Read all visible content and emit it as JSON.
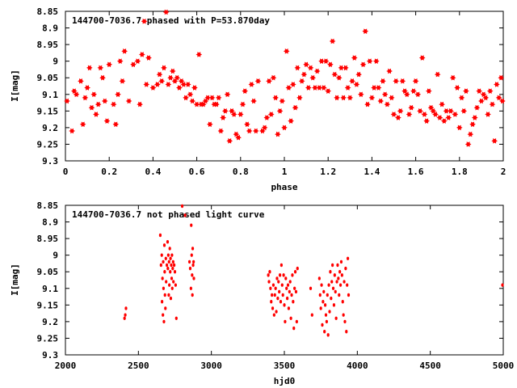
{
  "chart_data": [
    {
      "type": "scatter",
      "title": "144700-7036.7 phased with P=53.870day",
      "xlabel": "phase",
      "ylabel": "I[mag]",
      "xlim": [
        0,
        2
      ],
      "ylim": [
        9.3,
        8.85
      ],
      "y_inverted": true,
      "x_ticks": [
        0,
        0.2,
        0.4,
        0.6,
        0.8,
        1,
        1.2,
        1.4,
        1.6,
        1.8,
        2
      ],
      "x_tick_labels": [
        "0",
        "0.2",
        "0.4",
        "0.6",
        "0.8",
        "1",
        "1.2",
        "1.4",
        "1.6",
        "1.8",
        "2"
      ],
      "y_ticks": [
        8.85,
        8.9,
        8.95,
        9,
        9.05,
        9.1,
        9.15,
        9.2,
        9.25,
        9.3
      ],
      "y_tick_labels": [
        "8.85",
        "8.9",
        "8.95",
        "9",
        "9.05",
        "9.1",
        "9.15",
        "9.2",
        "9.25",
        "9.3"
      ],
      "grid": false,
      "marker_color": "#ff0000",
      "points": [
        [
          0.0,
          9.12
        ],
        [
          0.03,
          9.21
        ],
        [
          0.04,
          9.09
        ],
        [
          0.05,
          9.1
        ],
        [
          0.07,
          9.06
        ],
        [
          0.08,
          9.19
        ],
        [
          0.09,
          9.11
        ],
        [
          0.1,
          9.08
        ],
        [
          0.11,
          9.02
        ],
        [
          0.12,
          9.14
        ],
        [
          0.13,
          9.1
        ],
        [
          0.14,
          9.16
        ],
        [
          0.15,
          9.13
        ],
        [
          0.16,
          9.02
        ],
        [
          0.17,
          9.05
        ],
        [
          0.18,
          9.12
        ],
        [
          0.19,
          9.18
        ],
        [
          0.2,
          9.01
        ],
        [
          0.22,
          9.13
        ],
        [
          0.23,
          9.19
        ],
        [
          0.24,
          9.1
        ],
        [
          0.25,
          9.0
        ],
        [
          0.26,
          9.06
        ],
        [
          0.27,
          8.97
        ],
        [
          0.29,
          9.12
        ],
        [
          0.31,
          9.01
        ],
        [
          0.33,
          9.0
        ],
        [
          0.34,
          9.13
        ],
        [
          0.35,
          8.98
        ],
        [
          0.36,
          8.88
        ],
        [
          0.37,
          9.07
        ],
        [
          0.38,
          8.99
        ],
        [
          0.4,
          9.08
        ],
        [
          0.42,
          9.07
        ],
        [
          0.43,
          9.04
        ],
        [
          0.44,
          9.06
        ],
        [
          0.45,
          9.02
        ],
        [
          0.46,
          8.85
        ],
        [
          0.47,
          9.07
        ],
        [
          0.48,
          9.05
        ],
        [
          0.49,
          9.03
        ],
        [
          0.5,
          9.06
        ],
        [
          0.51,
          9.05
        ],
        [
          0.52,
          9.08
        ],
        [
          0.53,
          9.06
        ],
        [
          0.54,
          9.07
        ],
        [
          0.55,
          9.11
        ],
        [
          0.56,
          9.07
        ],
        [
          0.57,
          9.1
        ],
        [
          0.58,
          9.12
        ],
        [
          0.59,
          9.08
        ],
        [
          0.6,
          9.13
        ],
        [
          0.61,
          8.98
        ],
        [
          0.62,
          9.13
        ],
        [
          0.63,
          9.13
        ],
        [
          0.64,
          9.12
        ],
        [
          0.65,
          9.11
        ],
        [
          0.66,
          9.19
        ],
        [
          0.67,
          9.11
        ],
        [
          0.68,
          9.13
        ],
        [
          0.69,
          9.13
        ],
        [
          0.7,
          9.11
        ],
        [
          0.71,
          9.21
        ],
        [
          0.72,
          9.17
        ],
        [
          0.73,
          9.15
        ],
        [
          0.74,
          9.1
        ],
        [
          0.75,
          9.24
        ],
        [
          0.76,
          9.15
        ],
        [
          0.77,
          9.16
        ],
        [
          0.78,
          9.22
        ],
        [
          0.79,
          9.23
        ],
        [
          0.8,
          9.16
        ],
        [
          0.81,
          9.13
        ],
        [
          0.82,
          9.09
        ],
        [
          0.83,
          9.19
        ],
        [
          0.84,
          9.21
        ],
        [
          0.85,
          9.07
        ],
        [
          0.86,
          9.12
        ],
        [
          0.87,
          9.21
        ],
        [
          0.88,
          9.06
        ],
        [
          0.9,
          9.21
        ],
        [
          0.91,
          9.2
        ],
        [
          0.92,
          9.17
        ],
        [
          0.93,
          9.06
        ],
        [
          0.94,
          9.16
        ],
        [
          0.95,
          9.05
        ],
        [
          0.96,
          9.11
        ],
        [
          0.97,
          9.22
        ],
        [
          0.98,
          9.15
        ],
        [
          0.99,
          9.12
        ],
        [
          1.0,
          9.2
        ],
        [
          1.01,
          8.97
        ],
        [
          1.02,
          9.08
        ],
        [
          1.03,
          9.18
        ],
        [
          1.04,
          9.07
        ],
        [
          1.05,
          9.14
        ],
        [
          1.06,
          9.02
        ],
        [
          1.07,
          9.11
        ],
        [
          1.08,
          9.06
        ],
        [
          1.09,
          9.04
        ],
        [
          1.1,
          9.01
        ],
        [
          1.11,
          9.08
        ],
        [
          1.12,
          9.02
        ],
        [
          1.13,
          9.05
        ],
        [
          1.14,
          9.08
        ],
        [
          1.15,
          9.03
        ],
        [
          1.16,
          9.08
        ],
        [
          1.17,
          9.0
        ],
        [
          1.18,
          9.08
        ],
        [
          1.19,
          9.0
        ],
        [
          1.2,
          9.09
        ],
        [
          1.21,
          9.01
        ],
        [
          1.22,
          8.94
        ],
        [
          1.23,
          9.04
        ],
        [
          1.24,
          9.11
        ],
        [
          1.25,
          9.05
        ],
        [
          1.26,
          9.02
        ],
        [
          1.27,
          9.11
        ],
        [
          1.28,
          9.02
        ],
        [
          1.29,
          9.08
        ],
        [
          1.3,
          9.11
        ],
        [
          1.31,
          9.06
        ],
        [
          1.32,
          8.99
        ],
        [
          1.33,
          9.07
        ],
        [
          1.34,
          9.04
        ],
        [
          1.35,
          9.1
        ],
        [
          1.36,
          9.01
        ],
        [
          1.37,
          8.91
        ],
        [
          1.38,
          9.13
        ],
        [
          1.39,
          9.0
        ],
        [
          1.4,
          9.11
        ],
        [
          1.41,
          9.08
        ],
        [
          1.42,
          9.0
        ],
        [
          1.43,
          9.08
        ],
        [
          1.44,
          9.12
        ],
        [
          1.45,
          9.06
        ],
        [
          1.46,
          9.1
        ],
        [
          1.47,
          9.13
        ],
        [
          1.48,
          9.03
        ],
        [
          1.49,
          9.11
        ],
        [
          1.5,
          9.16
        ],
        [
          1.51,
          9.06
        ],
        [
          1.52,
          9.17
        ],
        [
          1.53,
          9.15
        ],
        [
          1.54,
          9.06
        ],
        [
          1.55,
          9.09
        ],
        [
          1.56,
          9.1
        ],
        [
          1.57,
          9.16
        ],
        [
          1.58,
          9.14
        ],
        [
          1.59,
          9.09
        ],
        [
          1.6,
          9.06
        ],
        [
          1.61,
          9.1
        ],
        [
          1.62,
          9.15
        ],
        [
          1.63,
          8.99
        ],
        [
          1.64,
          9.16
        ],
        [
          1.65,
          9.18
        ],
        [
          1.66,
          9.09
        ],
        [
          1.67,
          9.14
        ],
        [
          1.68,
          9.15
        ],
        [
          1.69,
          9.16
        ],
        [
          1.7,
          9.04
        ],
        [
          1.71,
          9.17
        ],
        [
          1.72,
          9.13
        ],
        [
          1.73,
          9.18
        ],
        [
          1.74,
          9.15
        ],
        [
          1.75,
          9.17
        ],
        [
          1.76,
          9.15
        ],
        [
          1.77,
          9.05
        ],
        [
          1.78,
          9.16
        ],
        [
          1.79,
          9.08
        ],
        [
          1.8,
          9.2
        ],
        [
          1.81,
          9.11
        ],
        [
          1.82,
          9.15
        ],
        [
          1.83,
          9.09
        ],
        [
          1.84,
          9.25
        ],
        [
          1.85,
          9.22
        ],
        [
          1.86,
          9.19
        ],
        [
          1.87,
          9.17
        ],
        [
          1.88,
          9.14
        ],
        [
          1.89,
          9.09
        ],
        [
          1.9,
          9.12
        ],
        [
          1.91,
          9.1
        ],
        [
          1.92,
          9.11
        ],
        [
          1.93,
          9.16
        ],
        [
          1.94,
          9.09
        ],
        [
          1.95,
          9.13
        ],
        [
          1.96,
          9.24
        ],
        [
          1.97,
          9.07
        ],
        [
          1.98,
          9.11
        ],
        [
          1.99,
          9.05
        ],
        [
          2.0,
          9.12
        ]
      ]
    },
    {
      "type": "scatter",
      "title": "144700-7036.7 not phased light curve",
      "xlabel": "hjd0",
      "ylabel": "I[mag]",
      "xlim": [
        2000,
        5000
      ],
      "ylim": [
        9.3,
        8.85
      ],
      "y_inverted": true,
      "x_ticks": [
        2000,
        2500,
        3000,
        3500,
        4000,
        4500,
        5000
      ],
      "x_tick_labels": [
        "2000",
        "2500",
        "3000",
        "3500",
        "4000",
        "4500",
        "5000"
      ],
      "y_ticks": [
        8.85,
        8.9,
        8.95,
        9,
        9.05,
        9.1,
        9.15,
        9.2,
        9.25,
        9.3
      ],
      "y_tick_labels": [
        "8.85",
        "8.9",
        "8.95",
        "9",
        "9.05",
        "9.1",
        "9.15",
        "9.2",
        "9.25",
        "9.3"
      ],
      "grid": false,
      "marker_color": "#ff0000",
      "points": [
        [
          2405,
          9.19
        ],
        [
          2410,
          9.18
        ],
        [
          2415,
          9.16
        ],
        [
          2650,
          8.94
        ],
        [
          2655,
          9.03
        ],
        [
          2660,
          9.0
        ],
        [
          2662,
          9.14
        ],
        [
          2665,
          9.07
        ],
        [
          2668,
          9.18
        ],
        [
          2670,
          9.02
        ],
        [
          2672,
          9.1
        ],
        [
          2675,
          9.2
        ],
        [
          2678,
          8.97
        ],
        [
          2680,
          9.05
        ],
        [
          2682,
          9.12
        ],
        [
          2685,
          9.16
        ],
        [
          2688,
          9.01
        ],
        [
          2690,
          9.08
        ],
        [
          2695,
          9.03
        ],
        [
          2700,
          8.96
        ],
        [
          2702,
          9.04
        ],
        [
          2705,
          9.0
        ],
        [
          2708,
          9.12
        ],
        [
          2710,
          9.02
        ],
        [
          2712,
          9.09
        ],
        [
          2715,
          8.98
        ],
        [
          2718,
          9.05
        ],
        [
          2720,
          9.01
        ],
        [
          2722,
          9.13
        ],
        [
          2725,
          9.03
        ],
        [
          2728,
          9.07
        ],
        [
          2730,
          9.0
        ],
        [
          2732,
          9.1
        ],
        [
          2735,
          9.04
        ],
        [
          2738,
          9.02
        ],
        [
          2740,
          9.08
        ],
        [
          2745,
          9.03
        ],
        [
          2750,
          9.05
        ],
        [
          2755,
          9.09
        ],
        [
          2760,
          9.19
        ],
        [
          2800,
          8.85
        ],
        [
          2820,
          8.88
        ],
        [
          2850,
          9.02
        ],
        [
          2855,
          9.04
        ],
        [
          2860,
          9.1
        ],
        [
          2862,
          8.91
        ],
        [
          2865,
          9.0
        ],
        [
          2868,
          9.06
        ],
        [
          2870,
          9.12
        ],
        [
          2872,
          8.98
        ],
        [
          2875,
          9.03
        ],
        [
          2878,
          9.02
        ],
        [
          2880,
          9.07
        ],
        [
          3390,
          9.06
        ],
        [
          3395,
          9.08
        ],
        [
          3400,
          9.05
        ],
        [
          3405,
          9.1
        ],
        [
          3410,
          9.14
        ],
        [
          3415,
          9.12
        ],
        [
          3420,
          9.16
        ],
        [
          3425,
          9.09
        ],
        [
          3430,
          9.18
        ],
        [
          3435,
          9.12
        ],
        [
          3440,
          9.1
        ],
        [
          3445,
          9.17
        ],
        [
          3450,
          9.07
        ],
        [
          3455,
          9.13
        ],
        [
          3460,
          9.08
        ],
        [
          3465,
          9.11
        ],
        [
          3470,
          9.06
        ],
        [
          3475,
          9.14
        ],
        [
          3480,
          9.03
        ],
        [
          3485,
          9.09
        ],
        [
          3490,
          9.12
        ],
        [
          3495,
          9.06
        ],
        [
          3500,
          9.15
        ],
        [
          3505,
          9.2
        ],
        [
          3510,
          9.07
        ],
        [
          3515,
          9.1
        ],
        [
          3520,
          9.13
        ],
        [
          3525,
          9.09
        ],
        [
          3530,
          9.16
        ],
        [
          3535,
          9.11
        ],
        [
          3540,
          9.08
        ],
        [
          3545,
          9.19
        ],
        [
          3550,
          9.12
        ],
        [
          3555,
          9.06
        ],
        [
          3560,
          9.14
        ],
        [
          3565,
          9.22
        ],
        [
          3570,
          9.1
        ],
        [
          3575,
          9.05
        ],
        [
          3580,
          9.11
        ],
        [
          3585,
          9.2
        ],
        [
          3590,
          9.04
        ],
        [
          3680,
          9.1
        ],
        [
          3690,
          9.18
        ],
        [
          3740,
          9.07
        ],
        [
          3745,
          9.12
        ],
        [
          3750,
          9.16
        ],
        [
          3755,
          9.09
        ],
        [
          3760,
          9.21
        ],
        [
          3765,
          9.14
        ],
        [
          3770,
          9.11
        ],
        [
          3775,
          9.23
        ],
        [
          3780,
          9.15
        ],
        [
          3785,
          9.18
        ],
        [
          3790,
          9.2
        ],
        [
          3795,
          9.12
        ],
        [
          3800,
          9.24
        ],
        [
          3805,
          9.09
        ],
        [
          3810,
          9.17
        ],
        [
          3815,
          9.05
        ],
        [
          3820,
          9.13
        ],
        [
          3825,
          9.08
        ],
        [
          3830,
          9.03
        ],
        [
          3835,
          9.1
        ],
        [
          3840,
          9.15
        ],
        [
          3845,
          9.06
        ],
        [
          3850,
          9.11
        ],
        [
          3855,
          9.19
        ],
        [
          3860,
          9.08
        ],
        [
          3865,
          9.03
        ],
        [
          3870,
          9.07
        ],
        [
          3875,
          9.12
        ],
        [
          3880,
          9.05
        ],
        [
          3885,
          9.09
        ],
        [
          3890,
          9.02
        ],
        [
          3895,
          9.06
        ],
        [
          3900,
          9.14
        ],
        [
          3905,
          9.18
        ],
        [
          3910,
          9.08
        ],
        [
          3915,
          9.2
        ],
        [
          3920,
          9.04
        ],
        [
          3925,
          9.23
        ],
        [
          3930,
          9.09
        ],
        [
          3935,
          9.01
        ],
        [
          3940,
          9.12
        ],
        [
          5000,
          9.09
        ]
      ]
    }
  ]
}
